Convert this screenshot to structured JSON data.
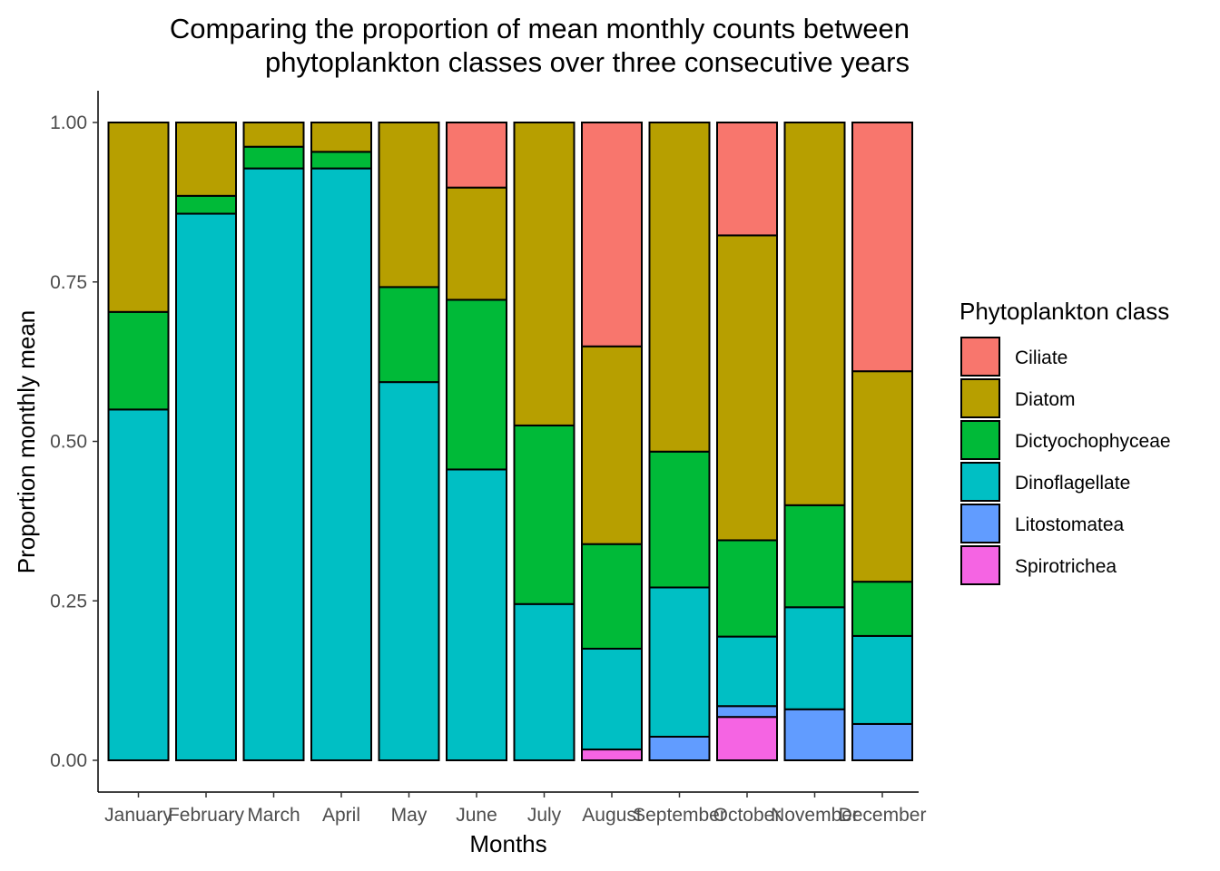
{
  "chart_data": {
    "type": "bar",
    "stacked": true,
    "title": "Comparing the proportion of mean monthly counts between phytoplankton classes over three consecutive years",
    "title_lines": [
      "Comparing the proportion of mean monthly counts between",
      "phytoplankton classes over three consecutive years"
    ],
    "xlabel": "Months",
    "ylabel": "Proportion monthly mean",
    "ylim": [
      0,
      1
    ],
    "yticks": [
      "0.00",
      "0.25",
      "0.50",
      "0.75",
      "1.00"
    ],
    "categories": [
      "January",
      "February",
      "March",
      "April",
      "May",
      "June",
      "July",
      "August",
      "September",
      "October",
      "November",
      "December"
    ],
    "legend_title": "Phytoplankton class",
    "legend_position": "right",
    "grid": false,
    "series": [
      {
        "name": "Spirotrichea",
        "color": "#F564E3",
        "values": [
          0,
          0,
          0,
          0,
          0,
          0,
          0,
          0.017,
          0,
          0.068,
          0,
          0
        ]
      },
      {
        "name": "Litostomatea",
        "color": "#619CFF",
        "values": [
          0,
          0,
          0,
          0,
          0,
          0,
          0,
          0,
          0.037,
          0.017,
          0.08,
          0.057
        ]
      },
      {
        "name": "Dinoflagellate",
        "color": "#00BFC4",
        "values": [
          0.55,
          0.857,
          0.928,
          0.928,
          0.593,
          0.456,
          0.245,
          0.158,
          0.234,
          0.109,
          0.16,
          0.138
        ]
      },
      {
        "name": "Dictyochophyceae",
        "color": "#00BA38",
        "values": [
          0.153,
          0.028,
          0.034,
          0.026,
          0.149,
          0.266,
          0.28,
          0.164,
          0.213,
          0.151,
          0.16,
          0.085
        ]
      },
      {
        "name": "Diatom",
        "color": "#B79F00",
        "values": [
          0.297,
          0.115,
          0.038,
          0.046,
          0.258,
          0.176,
          0.475,
          0.31,
          0.516,
          0.478,
          0.6,
          0.33
        ]
      },
      {
        "name": "Ciliate",
        "color": "#F8766D",
        "values": [
          0,
          0,
          0,
          0,
          0,
          0.102,
          0,
          0.351,
          0,
          0.177,
          0,
          0.39
        ]
      }
    ],
    "legend_order": [
      "Ciliate",
      "Diatom",
      "Dictyochophyceae",
      "Dinoflagellate",
      "Litostomatea",
      "Spirotrichea"
    ]
  }
}
